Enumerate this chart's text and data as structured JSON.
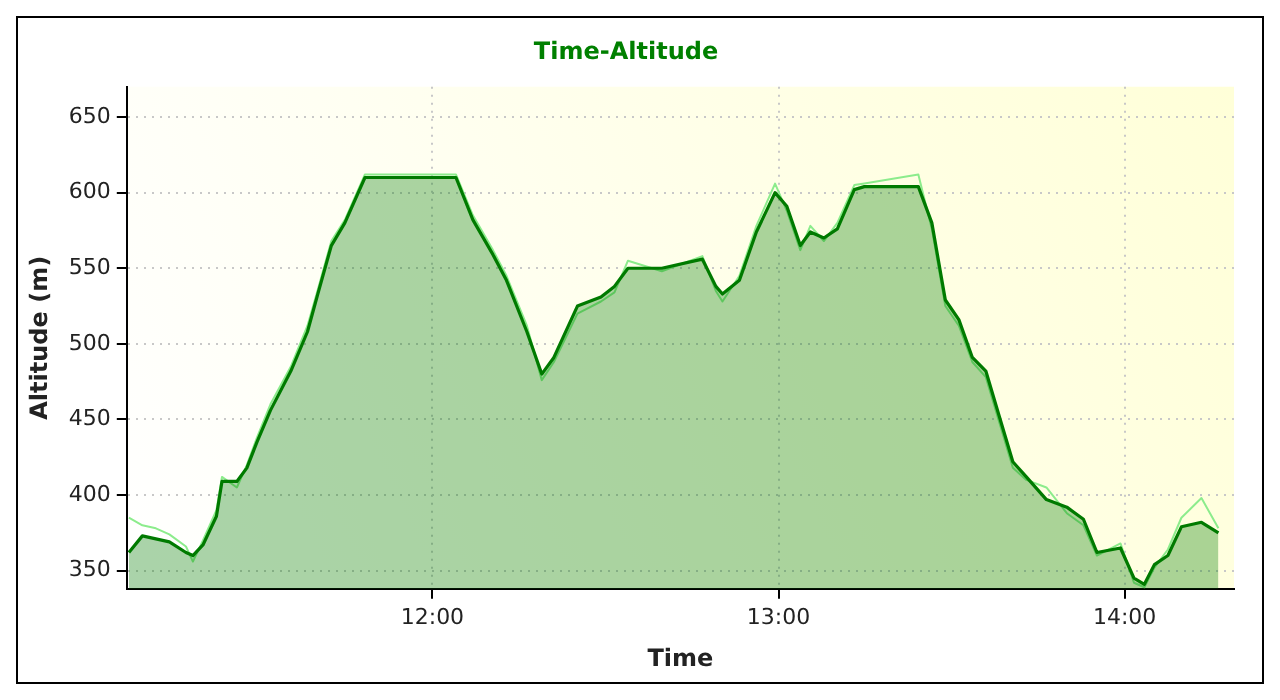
{
  "chart_data": {
    "type": "area",
    "title": "Time-Altitude",
    "xlabel": "Time",
    "ylabel": "Altitude (m)",
    "x": [
      11.123,
      11.162,
      11.201,
      11.24,
      11.288,
      11.308,
      11.337,
      11.376,
      11.392,
      11.435,
      11.464,
      11.493,
      11.532,
      11.591,
      11.639,
      11.669,
      11.708,
      11.747,
      11.805,
      12.068,
      12.117,
      12.175,
      12.214,
      12.273,
      12.316,
      12.351,
      12.419,
      12.487,
      12.526,
      12.565,
      12.663,
      12.78,
      12.819,
      12.838,
      12.887,
      12.936,
      12.99,
      13.024,
      13.063,
      13.092,
      13.131,
      13.17,
      13.219,
      13.248,
      13.404,
      13.443,
      13.482,
      13.521,
      13.56,
      13.599,
      13.638,
      13.677,
      13.716,
      13.774,
      13.833,
      13.881,
      13.92,
      13.988,
      14.027,
      14.057,
      14.086,
      14.125,
      14.164,
      14.222,
      14.271
    ],
    "series": [
      {
        "color": "#007a00",
        "values": [
          362,
          373,
          371,
          369,
          362,
          360,
          367,
          386,
          409,
          409,
          418,
          435,
          456,
          482,
          508,
          533,
          565,
          580,
          610,
          610,
          582,
          559,
          542,
          508,
          480,
          491,
          525,
          531,
          538,
          550,
          550,
          556,
          538,
          533,
          542,
          574,
          600,
          591,
          565,
          574,
          570,
          576,
          602,
          604,
          604,
          580,
          529,
          516,
          491,
          482,
          452,
          422,
          412,
          397,
          392,
          384,
          362,
          365,
          345,
          341,
          354,
          360,
          379,
          382,
          375
        ]
      },
      {
        "type": "line",
        "color": "#8cec8c",
        "values": [
          385,
          380,
          378,
          374,
          366,
          356,
          370,
          390,
          412,
          405,
          420,
          438,
          460,
          485,
          512,
          536,
          568,
          582,
          612,
          612,
          585,
          562,
          545,
          512,
          476,
          488,
          520,
          528,
          534,
          555,
          548,
          558,
          535,
          528,
          545,
          578,
          606,
          588,
          562,
          578,
          568,
          580,
          605,
          606,
          612,
          576,
          525,
          512,
          488,
          478,
          448,
          418,
          410,
          405,
          388,
          380,
          360,
          368,
          342,
          339,
          352,
          364,
          385,
          398,
          378
        ]
      }
    ],
    "xlim": [
      11.117,
      14.316
    ],
    "ylim": [
      338,
      670
    ],
    "xticks": [
      {
        "value": 12,
        "label": "12:00"
      },
      {
        "value": 13,
        "label": "13:00"
      },
      {
        "value": 14,
        "label": "14:00"
      }
    ],
    "yticks": [
      350,
      400,
      450,
      500,
      550,
      600,
      650
    ],
    "grid": true,
    "legend": false
  }
}
